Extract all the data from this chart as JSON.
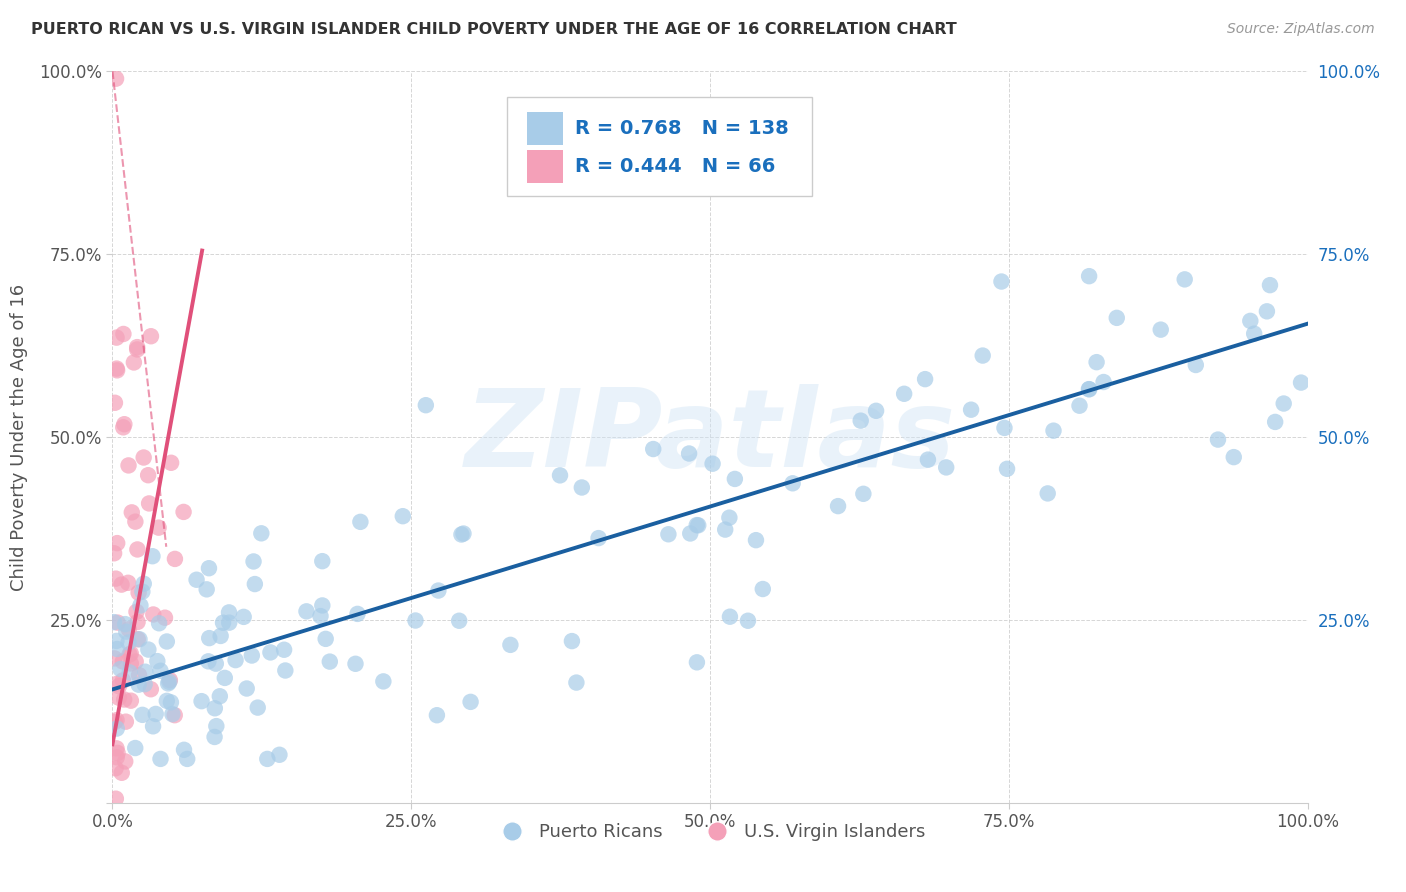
{
  "title": "PUERTO RICAN VS U.S. VIRGIN ISLANDER CHILD POVERTY UNDER THE AGE OF 16 CORRELATION CHART",
  "source": "Source: ZipAtlas.com",
  "ylabel": "Child Poverty Under the Age of 16",
  "watermark": "ZIPatlas",
  "blue_R": 0.768,
  "blue_N": 138,
  "pink_R": 0.444,
  "pink_N": 66,
  "blue_color": "#a8cce8",
  "pink_color": "#f4a0b8",
  "blue_line_color": "#1a5fa0",
  "pink_line_color": "#e0507a",
  "legend_label_blue": "Puerto Ricans",
  "legend_label_pink": "U.S. Virgin Islanders",
  "xlim": [
    0,
    1
  ],
  "ylim": [
    0,
    1
  ],
  "xticks": [
    0,
    0.25,
    0.5,
    0.75,
    1.0
  ],
  "yticks": [
    0,
    0.25,
    0.5,
    0.75,
    1.0
  ],
  "xticklabels": [
    "0.0%",
    "25.0%",
    "50.0%",
    "75.0%",
    "100.0%"
  ],
  "left_yticklabels": [
    "",
    "25.0%",
    "50.0%",
    "75.0%",
    "100.0%"
  ],
  "right_yticklabels": [
    "25.0%",
    "50.0%",
    "75.0%",
    "100.0%"
  ],
  "blue_trend_intercept": 0.155,
  "blue_trend_slope": 0.5,
  "pink_trend_intercept": 0.08,
  "pink_trend_slope": 9.0,
  "figsize": [
    14.06,
    8.92
  ],
  "dpi": 100,
  "title_color": "#333333",
  "axis_color": "#555555",
  "legend_stat_color": "#1a6fbd",
  "grid_color": "#cccccc",
  "right_tick_color": "#1a6fbd"
}
